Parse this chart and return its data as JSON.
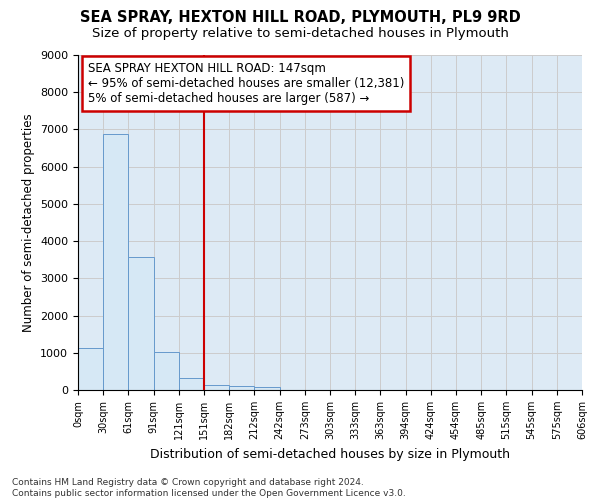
{
  "title": "SEA SPRAY, HEXTON HILL ROAD, PLYMOUTH, PL9 9RD",
  "subtitle": "Size of property relative to semi-detached houses in Plymouth",
  "xlabel": "Distribution of semi-detached houses by size in Plymouth",
  "ylabel": "Number of semi-detached properties",
  "bar_values": [
    1130,
    6880,
    3560,
    1010,
    335,
    145,
    105,
    80,
    0,
    0,
    0,
    0,
    0,
    0,
    0,
    0,
    0,
    0,
    0,
    0
  ],
  "bar_labels": [
    "0sqm",
    "30sqm",
    "61sqm",
    "91sqm",
    "121sqm",
    "151sqm",
    "182sqm",
    "212sqm",
    "242sqm",
    "273sqm",
    "303sqm",
    "333sqm",
    "363sqm",
    "394sqm",
    "424sqm",
    "454sqm",
    "485sqm",
    "515sqm",
    "545sqm",
    "575sqm",
    "606sqm"
  ],
  "bar_color": "#d6e8f5",
  "bar_edge_color": "#6699cc",
  "red_line_x": 5.0,
  "annotation_text": "SEA SPRAY HEXTON HILL ROAD: 147sqm\n← 95% of semi-detached houses are smaller (12,381)\n5% of semi-detached houses are larger (587) →",
  "annotation_box_color": "#ffffff",
  "annotation_box_edge_color": "#cc0000",
  "red_line_color": "#cc0000",
  "ylim": [
    0,
    9000
  ],
  "yticks": [
    0,
    1000,
    2000,
    3000,
    4000,
    5000,
    6000,
    7000,
    8000,
    9000
  ],
  "grid_color": "#cccccc",
  "bg_color": "#ddeaf5",
  "footer": "Contains HM Land Registry data © Crown copyright and database right 2024.\nContains public sector information licensed under the Open Government Licence v3.0.",
  "title_fontsize": 10.5,
  "subtitle_fontsize": 9.5,
  "ann_fontsize": 8.5
}
